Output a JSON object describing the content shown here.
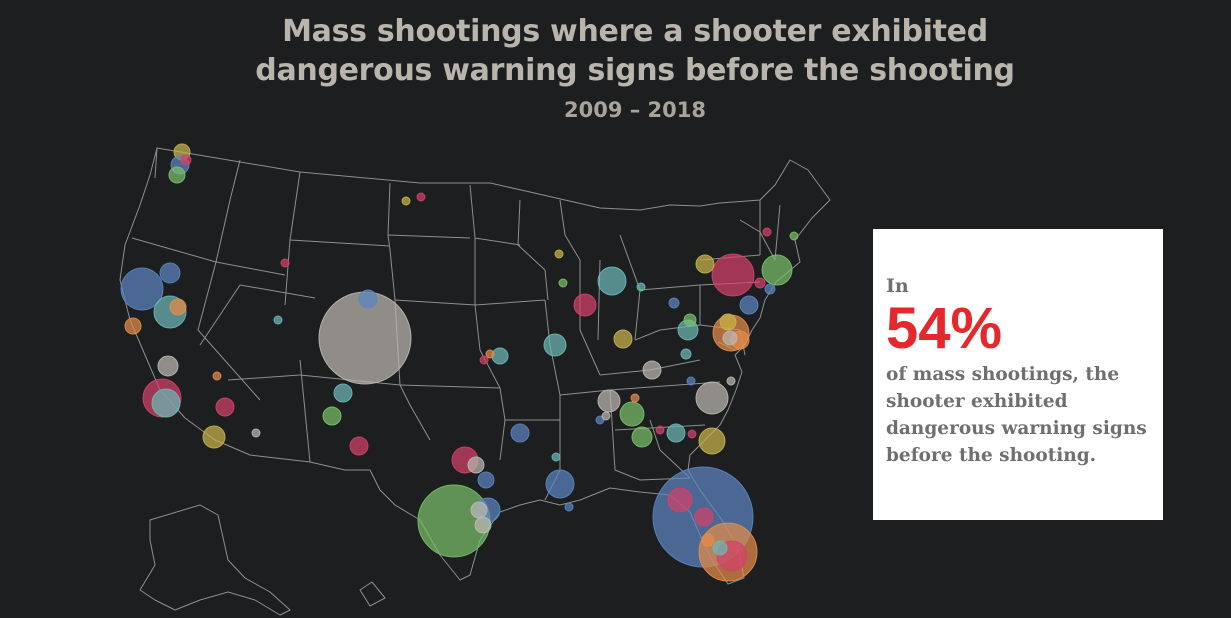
{
  "header": {
    "title_line1": "Mass shootings where a shooter exhibited",
    "title_line2": "dangerous warning signs before the shooting",
    "subtitle": "2009 – 2018"
  },
  "callout": {
    "intro": "In",
    "stat": "54%",
    "body": "of mass shootings, the shooter exhibited dangerous warning signs before the shooting."
  },
  "colors": {
    "background": "#1d1e20",
    "state_borders": "#8f8f8f",
    "blue": "#5b85bf",
    "teal": "#6cb9b5",
    "green": "#7bbf6a",
    "red": "#d2416a",
    "orange": "#e58c4a",
    "yellow": "#c7b44a",
    "gray": "#bdb8b2",
    "callout_stat": "#e5282b"
  },
  "map": {
    "region": "contiguous United States and Alaska (partial)",
    "marker_encoding": "circle area scales with incident size"
  }
}
